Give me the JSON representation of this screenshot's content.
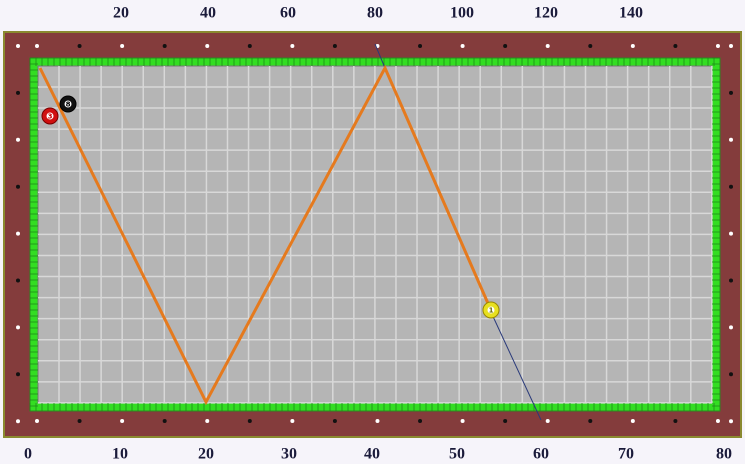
{
  "top_scale": [
    "20",
    "40",
    "60",
    "80",
    "100",
    "120",
    "140"
  ],
  "bottom_scale": [
    "0",
    "10",
    "20",
    "30",
    "40",
    "50",
    "60",
    "70",
    "80"
  ],
  "balls": [
    {
      "label": "3"
    },
    {
      "label": "8"
    },
    {
      "label": "1"
    }
  ]
}
